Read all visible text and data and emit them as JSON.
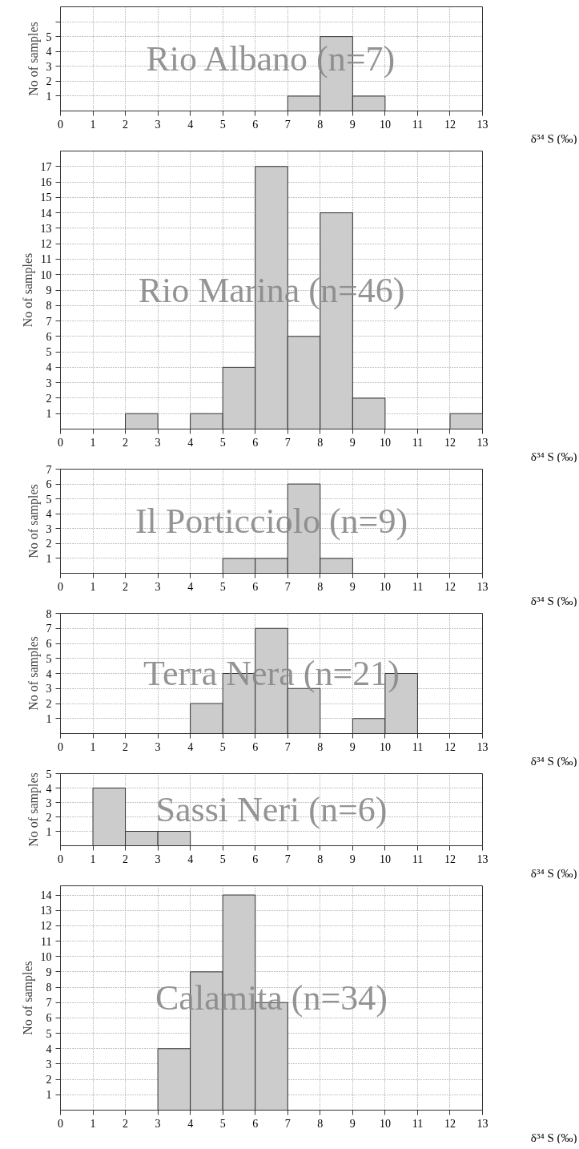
{
  "chart_data": [
    {
      "type": "histogram",
      "title": "Rio Albano (n=7)",
      "ylabel": "No of samples",
      "xlabel": "δ³⁴ S (‰)",
      "bins": [
        0,
        1,
        2,
        3,
        4,
        5,
        6,
        7,
        8,
        9,
        10,
        11,
        12,
        13
      ],
      "values": [
        0,
        0,
        0,
        0,
        0,
        0,
        0,
        1,
        5,
        1,
        0,
        0,
        0
      ],
      "color": "#cccccc",
      "xlim": [
        0,
        13
      ],
      "xticks": [
        0,
        1,
        2,
        3,
        4,
        5,
        6,
        7,
        8,
        9,
        10,
        11,
        12,
        13
      ],
      "ylim": [
        0,
        7
      ],
      "yticks": [
        1,
        2,
        3,
        4,
        5,
        {
          "value": 6,
          "label": null
        }
      ],
      "grid": true
    },
    {
      "type": "histogram",
      "title": "Rio Marina (n=46)",
      "ylabel": "No of samples",
      "xlabel": "δ³⁴ S (‰)",
      "bins": [
        0,
        1,
        2,
        3,
        4,
        5,
        6,
        7,
        8,
        9,
        10,
        11,
        12,
        13
      ],
      "values": [
        0,
        0,
        1,
        0,
        1,
        4,
        17,
        6,
        14,
        2,
        0,
        0,
        1
      ],
      "color": "#cccccc",
      "xlim": [
        0,
        13
      ],
      "xticks": [
        0,
        1,
        2,
        3,
        4,
        5,
        6,
        7,
        8,
        9,
        10,
        11,
        12,
        13
      ],
      "ylim": [
        0,
        18
      ],
      "yticks": [
        1,
        2,
        3,
        4,
        5,
        6,
        7,
        8,
        9,
        10,
        11,
        12,
        13,
        14,
        15,
        16,
        17
      ],
      "grid": true
    },
    {
      "type": "histogram",
      "title": "Il Porticciolo (n=9)",
      "ylabel": "No of samples",
      "xlabel": "δ³⁴ S (‰)",
      "bins": [
        0,
        1,
        2,
        3,
        4,
        5,
        6,
        7,
        8,
        9,
        10,
        11,
        12,
        13
      ],
      "values": [
        0,
        0,
        0,
        0,
        0,
        1,
        1,
        6,
        1,
        0,
        0,
        0,
        0
      ],
      "color": "#cccccc",
      "xlim": [
        0,
        13
      ],
      "xticks": [
        0,
        1,
        2,
        3,
        4,
        5,
        6,
        7,
        8,
        9,
        10,
        11,
        12,
        13
      ],
      "ylim": [
        0,
        7
      ],
      "yticks": [
        1,
        2,
        3,
        4,
        5,
        6,
        7
      ],
      "grid": true
    },
    {
      "type": "histogram",
      "title": "Terra Nera (n=21)",
      "ylabel": "No of samples",
      "xlabel": "δ³⁴ S (‰)",
      "bins": [
        0,
        1,
        2,
        3,
        4,
        5,
        6,
        7,
        8,
        9,
        10,
        11,
        12,
        13
      ],
      "values": [
        0,
        0,
        0,
        0,
        2,
        4,
        7,
        3,
        0,
        1,
        4,
        0,
        0
      ],
      "color": "#cccccc",
      "xlim": [
        0,
        13
      ],
      "xticks": [
        0,
        1,
        2,
        3,
        4,
        5,
        6,
        7,
        8,
        9,
        10,
        11,
        12,
        13
      ],
      "ylim": [
        0,
        8
      ],
      "yticks": [
        1,
        2,
        3,
        4,
        5,
        6,
        7,
        8
      ],
      "grid": true
    },
    {
      "type": "histogram",
      "title": "Sassi Neri (n=6)",
      "ylabel": "No of samples",
      "xlabel": "δ³⁴ S (‰)",
      "bins": [
        0,
        1,
        2,
        3,
        4,
        5,
        6,
        7,
        8,
        9,
        10,
        11,
        12,
        13
      ],
      "values": [
        0,
        4,
        1,
        1,
        0,
        0,
        0,
        0,
        0,
        0,
        0,
        0,
        0
      ],
      "color": "#cccccc",
      "xlim": [
        0,
        13
      ],
      "xticks": [
        0,
        1,
        2,
        3,
        4,
        5,
        6,
        7,
        8,
        9,
        10,
        11,
        12,
        13
      ],
      "ylim": [
        0,
        5
      ],
      "yticks": [
        1,
        2,
        3,
        4,
        5
      ],
      "grid": true
    },
    {
      "type": "histogram",
      "title": "Calamita (n=34)",
      "ylabel": "No of samples",
      "xlabel": "δ³⁴ S (‰)",
      "bins": [
        0,
        1,
        2,
        3,
        4,
        5,
        6,
        7,
        8,
        9,
        10,
        11,
        12,
        13
      ],
      "values": [
        0,
        0,
        0,
        4,
        9,
        14,
        7,
        0,
        0,
        0,
        0,
        0,
        0
      ],
      "color": "#cccccc",
      "xlim": [
        0,
        13
      ],
      "xticks": [
        0,
        1,
        2,
        3,
        4,
        5,
        6,
        7,
        8,
        9,
        10,
        11,
        12,
        13
      ],
      "ylim": [
        0,
        14.6
      ],
      "yticks": [
        1,
        2,
        3,
        4,
        5,
        6,
        7,
        8,
        9,
        10,
        11,
        12,
        13,
        14
      ],
      "grid": true
    }
  ]
}
